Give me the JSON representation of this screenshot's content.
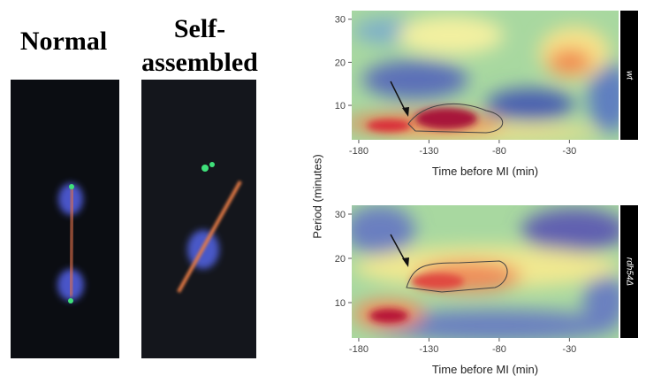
{
  "figure": {
    "images": [
      {
        "label_lines": [
          "Normal"
        ]
      },
      {
        "label_lines": [
          "Self-",
          "assembled"
        ]
      }
    ],
    "panels": [
      {
        "strip": "wt",
        "xlabel": "Time before MI (min)",
        "xlim": [
          -185,
          5
        ],
        "ylim": [
          2,
          32
        ],
        "xticks": [
          -180,
          -130,
          -80,
          -30
        ],
        "yticks": [
          10,
          20,
          30
        ]
      },
      {
        "strip": "rdh54Δ",
        "xlabel": "Time before MI (min)",
        "xlim": [
          -185,
          5
        ],
        "ylim": [
          2,
          32
        ],
        "xticks": [
          -180,
          -130,
          -80,
          -30
        ],
        "yticks": [
          10,
          20,
          30
        ]
      }
    ],
    "ylabel": "Period (minutes)"
  }
}
